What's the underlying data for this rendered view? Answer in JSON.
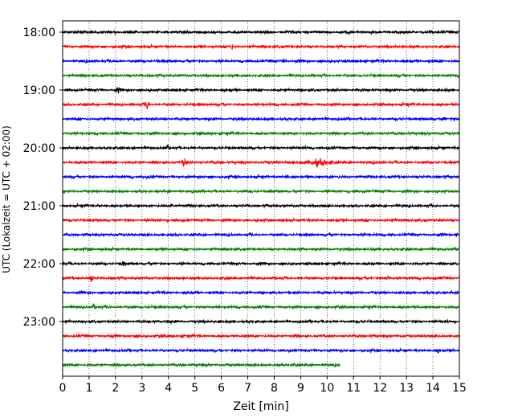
{
  "chart_data": {
    "type": "line",
    "title": "",
    "xlabel": "Zeit  [min]",
    "ylabel": "UTC (Lokalzeit = UTC + 02:00)",
    "xlim": [
      0,
      15
    ],
    "x_ticks": [
      "0",
      "1",
      "2",
      "3",
      "4",
      "5",
      "6",
      "7",
      "8",
      "9",
      "10",
      "11",
      "12",
      "13",
      "14",
      "15"
    ],
    "y_tick_labels": [
      "18:00",
      "19:00",
      "20:00",
      "21:00",
      "22:00",
      "23:00"
    ],
    "grid": "vertical dotted lines at each minute",
    "legend": "none",
    "colors_cycle": [
      "#000000",
      "#ff0000",
      "#0000ff",
      "#008000"
    ],
    "rows": [
      {
        "start": "18:00",
        "color": "#000000",
        "length_min": 15
      },
      {
        "start": "18:15",
        "color": "#ff0000",
        "length_min": 15,
        "events": [
          {
            "t": 6.4,
            "amp": 0.6
          }
        ]
      },
      {
        "start": "18:30",
        "color": "#0000ff",
        "length_min": 15,
        "events": [
          {
            "t": 8.4,
            "amp": 0.6
          }
        ]
      },
      {
        "start": "18:45",
        "color": "#008000",
        "length_min": 15
      },
      {
        "start": "19:00",
        "color": "#000000",
        "length_min": 15,
        "events": [
          {
            "t": 2.1,
            "amp": 0.5
          }
        ]
      },
      {
        "start": "19:15",
        "color": "#ff0000",
        "length_min": 15,
        "events": [
          {
            "t": 3.2,
            "amp": 0.9
          }
        ]
      },
      {
        "start": "19:30",
        "color": "#0000ff",
        "length_min": 15,
        "events": [
          {
            "t": 14.4,
            "amp": 0.5
          }
        ]
      },
      {
        "start": "19:45",
        "color": "#008000",
        "length_min": 15
      },
      {
        "start": "20:00",
        "color": "#000000",
        "length_min": 15,
        "events": [
          {
            "t": 4.0,
            "amp": 0.4
          }
        ]
      },
      {
        "start": "20:15",
        "color": "#ff0000",
        "length_min": 15,
        "events": [
          {
            "t": 4.6,
            "amp": 1.0
          },
          {
            "t": 9.7,
            "amp": 0.6,
            "width": 0.5
          }
        ]
      },
      {
        "start": "20:30",
        "color": "#0000ff",
        "length_min": 15,
        "events": [
          {
            "t": 8.5,
            "amp": 0.4
          }
        ]
      },
      {
        "start": "20:45",
        "color": "#008000",
        "length_min": 15
      },
      {
        "start": "21:00",
        "color": "#000000",
        "length_min": 15,
        "events": [
          {
            "t": 4.1,
            "amp": 0.5
          }
        ]
      },
      {
        "start": "21:15",
        "color": "#ff0000",
        "length_min": 15
      },
      {
        "start": "21:30",
        "color": "#0000ff",
        "length_min": 15,
        "events": [
          {
            "t": 14.9,
            "amp": 0.6
          }
        ]
      },
      {
        "start": "21:45",
        "color": "#008000",
        "length_min": 15
      },
      {
        "start": "22:00",
        "color": "#000000",
        "length_min": 15,
        "events": [
          {
            "t": 2.3,
            "amp": 0.5
          }
        ]
      },
      {
        "start": "22:15",
        "color": "#ff0000",
        "length_min": 15,
        "events": [
          {
            "t": 1.1,
            "amp": 0.5
          },
          {
            "t": 12.3,
            "amp": 0.4
          }
        ]
      },
      {
        "start": "22:30",
        "color": "#0000ff",
        "length_min": 15
      },
      {
        "start": "22:45",
        "color": "#008000",
        "length_min": 15,
        "events": [
          {
            "t": 1.2,
            "amp": 0.5
          }
        ]
      },
      {
        "start": "23:00",
        "color": "#000000",
        "length_min": 15
      },
      {
        "start": "23:15",
        "color": "#ff0000",
        "length_min": 15,
        "events": [
          {
            "t": 1.8,
            "amp": 0.5
          }
        ]
      },
      {
        "start": "23:30",
        "color": "#0000ff",
        "length_min": 15,
        "events": [
          {
            "t": 14.2,
            "amp": 0.5
          }
        ]
      },
      {
        "start": "23:45",
        "color": "#008000",
        "length_min": 10.5,
        "events": [
          {
            "t": 8.8,
            "amp": 0.4
          }
        ]
      }
    ]
  }
}
